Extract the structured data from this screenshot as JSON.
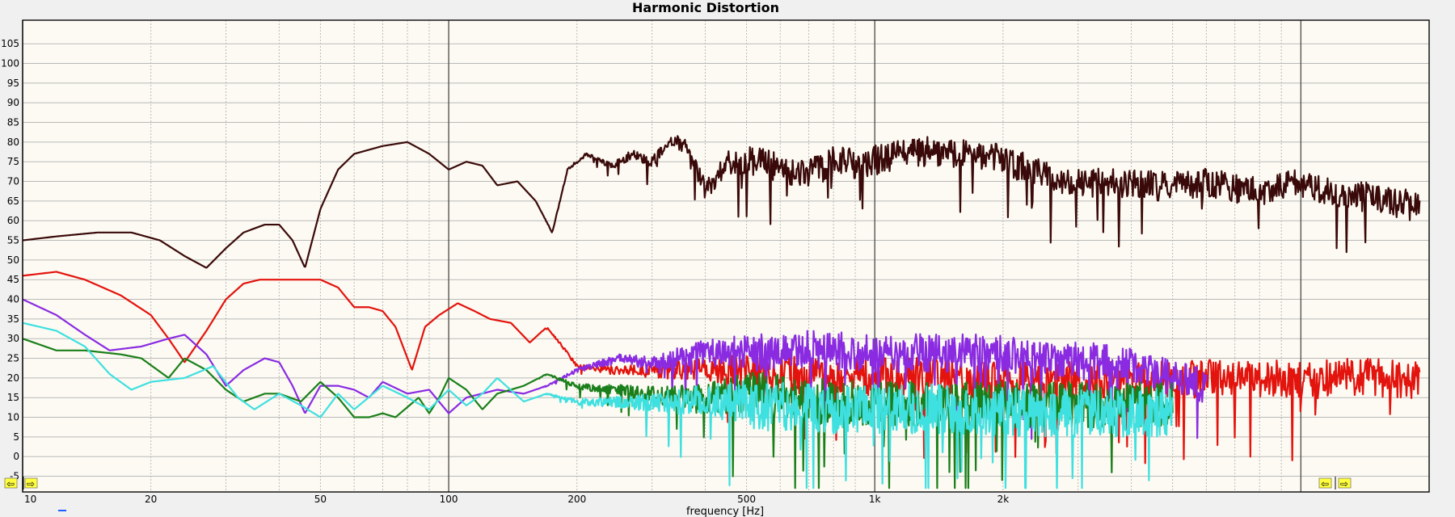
{
  "chart_data": {
    "type": "line",
    "title": "Harmonic Distortion",
    "xlabel": "frequency [Hz]",
    "ylabel": "",
    "xscale": "log",
    "xlim": [
      10,
      20000
    ],
    "ylim": [
      -9,
      111
    ],
    "y_ticks": [
      -5,
      0,
      5,
      10,
      15,
      20,
      25,
      30,
      35,
      40,
      45,
      50,
      55,
      60,
      65,
      70,
      75,
      80,
      85,
      90,
      95,
      100,
      105
    ],
    "x_tick_labels": [
      {
        "value": 10,
        "label": "10"
      },
      {
        "value": 20,
        "label": "20"
      },
      {
        "value": 50,
        "label": "50"
      },
      {
        "value": 100,
        "label": "100"
      },
      {
        "value": 200,
        "label": "200"
      },
      {
        "value": 500,
        "label": "500"
      },
      {
        "value": 1000,
        "label": "1k"
      },
      {
        "value": 2000,
        "label": "2k"
      }
    ],
    "grid": true,
    "plot_background": "#fcfaf2",
    "grid_color": "#b9b9b9",
    "series": [
      {
        "color": "#3a0a0a",
        "width": 2.2,
        "noise": 8,
        "points": [
          [
            10,
            55
          ],
          [
            12,
            56
          ],
          [
            15,
            57
          ],
          [
            18,
            57
          ],
          [
            21,
            55
          ],
          [
            24,
            51
          ],
          [
            27,
            48
          ],
          [
            30,
            53
          ],
          [
            33,
            57
          ],
          [
            37,
            59
          ],
          [
            40,
            59
          ],
          [
            43,
            55
          ],
          [
            46,
            48
          ],
          [
            50,
            63
          ],
          [
            55,
            73
          ],
          [
            60,
            77
          ],
          [
            70,
            79
          ],
          [
            80,
            80
          ],
          [
            90,
            77
          ],
          [
            100,
            73
          ],
          [
            110,
            75
          ],
          [
            120,
            74
          ],
          [
            130,
            69
          ],
          [
            145,
            70
          ],
          [
            160,
            65
          ],
          [
            175,
            57
          ],
          [
            190,
            73
          ],
          [
            210,
            77
          ],
          [
            240,
            74
          ],
          [
            270,
            77
          ],
          [
            300,
            75
          ],
          [
            330,
            80
          ],
          [
            360,
            80
          ],
          [
            400,
            68
          ],
          [
            450,
            75
          ],
          [
            500,
            76
          ],
          [
            600,
            74
          ],
          [
            700,
            72
          ],
          [
            800,
            76
          ],
          [
            900,
            75
          ],
          [
            1000,
            76
          ],
          [
            1200,
            78
          ],
          [
            1500,
            78
          ],
          [
            2000,
            76
          ],
          [
            2500,
            72
          ],
          [
            3000,
            70
          ],
          [
            4000,
            70
          ],
          [
            5000,
            69
          ],
          [
            6000,
            70
          ],
          [
            8000,
            68
          ],
          [
            10000,
            70
          ],
          [
            12000,
            68
          ],
          [
            15000,
            66
          ],
          [
            19000,
            64
          ]
        ]
      },
      {
        "color": "#e3130d",
        "width": 2.2,
        "noise": 10,
        "points": [
          [
            10,
            46
          ],
          [
            12,
            47
          ],
          [
            14,
            45
          ],
          [
            17,
            41
          ],
          [
            20,
            36
          ],
          [
            22,
            30
          ],
          [
            24,
            24
          ],
          [
            27,
            32
          ],
          [
            30,
            40
          ],
          [
            33,
            44
          ],
          [
            36,
            45
          ],
          [
            40,
            45
          ],
          [
            45,
            45
          ],
          [
            50,
            45
          ],
          [
            55,
            43
          ],
          [
            60,
            38
          ],
          [
            65,
            38
          ],
          [
            70,
            37
          ],
          [
            75,
            33
          ],
          [
            82,
            22
          ],
          [
            88,
            33
          ],
          [
            95,
            36
          ],
          [
            105,
            39
          ],
          [
            115,
            37
          ],
          [
            125,
            35
          ],
          [
            140,
            34
          ],
          [
            155,
            29
          ],
          [
            170,
            33
          ],
          [
            185,
            28
          ],
          [
            200,
            23
          ],
          [
            250,
            22
          ],
          [
            300,
            22
          ],
          [
            400,
            23
          ],
          [
            500,
            22
          ],
          [
            700,
            21
          ],
          [
            1000,
            21
          ],
          [
            1500,
            21
          ],
          [
            2000,
            20
          ],
          [
            3000,
            20
          ],
          [
            4000,
            20
          ],
          [
            5000,
            20
          ],
          [
            7000,
            21
          ],
          [
            10000,
            20
          ],
          [
            14000,
            21
          ],
          [
            19000,
            20
          ]
        ]
      },
      {
        "color": "#8a2be2",
        "width": 2.2,
        "noise": 10,
        "points": [
          [
            10,
            40
          ],
          [
            12,
            36
          ],
          [
            14,
            31
          ],
          [
            16,
            27
          ],
          [
            19,
            28
          ],
          [
            22,
            30
          ],
          [
            24,
            31
          ],
          [
            27,
            26
          ],
          [
            30,
            18
          ],
          [
            33,
            22
          ],
          [
            37,
            25
          ],
          [
            40,
            24
          ],
          [
            43,
            18
          ],
          [
            46,
            11
          ],
          [
            50,
            18
          ],
          [
            55,
            18
          ],
          [
            60,
            17
          ],
          [
            65,
            15
          ],
          [
            70,
            19
          ],
          [
            80,
            16
          ],
          [
            90,
            17
          ],
          [
            100,
            11
          ],
          [
            110,
            15
          ],
          [
            130,
            17
          ],
          [
            150,
            16
          ],
          [
            170,
            18
          ],
          [
            200,
            22
          ],
          [
            250,
            25
          ],
          [
            300,
            24
          ],
          [
            400,
            27
          ],
          [
            500,
            27
          ],
          [
            700,
            28
          ],
          [
            1000,
            27
          ],
          [
            1500,
            27
          ],
          [
            2000,
            27
          ],
          [
            2500,
            25
          ],
          [
            3000,
            25
          ],
          [
            4000,
            24
          ],
          [
            5000,
            20
          ],
          [
            6000,
            19
          ]
        ]
      },
      {
        "color": "#1a7f1a",
        "width": 2.2,
        "noise": 12,
        "points": [
          [
            10,
            30
          ],
          [
            12,
            27
          ],
          [
            14,
            27
          ],
          [
            17,
            26
          ],
          [
            19,
            25
          ],
          [
            22,
            20
          ],
          [
            24,
            25
          ],
          [
            27,
            22
          ],
          [
            30,
            17
          ],
          [
            33,
            14
          ],
          [
            37,
            16
          ],
          [
            40,
            16
          ],
          [
            45,
            14
          ],
          [
            50,
            19
          ],
          [
            55,
            15
          ],
          [
            60,
            10
          ],
          [
            65,
            10
          ],
          [
            70,
            11
          ],
          [
            75,
            10
          ],
          [
            85,
            15
          ],
          [
            90,
            11
          ],
          [
            95,
            15
          ],
          [
            100,
            20
          ],
          [
            110,
            17
          ],
          [
            120,
            12
          ],
          [
            130,
            16
          ],
          [
            150,
            18
          ],
          [
            170,
            21
          ],
          [
            200,
            18
          ],
          [
            250,
            17
          ],
          [
            300,
            16
          ],
          [
            400,
            15
          ],
          [
            500,
            17
          ],
          [
            700,
            15
          ],
          [
            1000,
            14
          ],
          [
            1500,
            14
          ],
          [
            2000,
            14
          ],
          [
            3000,
            14
          ],
          [
            4000,
            14
          ],
          [
            5000,
            14
          ]
        ]
      },
      {
        "color": "#3fe0e0",
        "width": 2.2,
        "noise": 13,
        "points": [
          [
            10,
            34
          ],
          [
            12,
            32
          ],
          [
            14,
            28
          ],
          [
            16,
            21
          ],
          [
            18,
            17
          ],
          [
            20,
            19
          ],
          [
            24,
            20
          ],
          [
            28,
            23
          ],
          [
            32,
            15
          ],
          [
            35,
            12
          ],
          [
            40,
            16
          ],
          [
            45,
            13
          ],
          [
            50,
            10
          ],
          [
            55,
            16
          ],
          [
            60,
            12
          ],
          [
            70,
            18
          ],
          [
            80,
            15
          ],
          [
            90,
            12
          ],
          [
            100,
            17
          ],
          [
            110,
            13
          ],
          [
            120,
            16
          ],
          [
            130,
            20
          ],
          [
            150,
            14
          ],
          [
            170,
            16
          ],
          [
            200,
            14
          ],
          [
            250,
            14
          ],
          [
            300,
            14
          ],
          [
            400,
            15
          ],
          [
            500,
            14
          ],
          [
            700,
            13
          ],
          [
            1000,
            13
          ],
          [
            1500,
            13
          ],
          [
            2000,
            12
          ],
          [
            3000,
            12
          ],
          [
            4000,
            12
          ],
          [
            5000,
            12
          ]
        ]
      }
    ]
  }
}
